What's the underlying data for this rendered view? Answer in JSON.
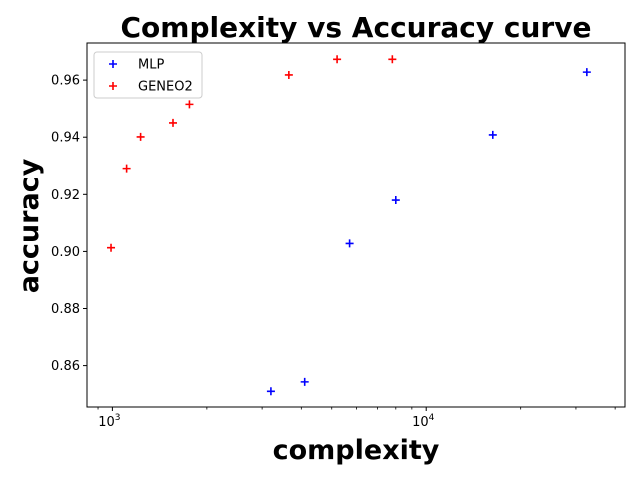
{
  "chart_data": {
    "type": "scatter",
    "title": "Complexity vs Accuracy curve",
    "xlabel": "complexity",
    "ylabel": "accuracy",
    "xscale": "log",
    "xlim": [
      830,
      43000
    ],
    "ylim": [
      0.8455,
      0.973
    ],
    "grid": false,
    "legend_position": "top-left",
    "x_ticks": [
      {
        "value": 1000,
        "base": "10",
        "exp": "3"
      },
      {
        "value": 10000,
        "base": "10",
        "exp": "4"
      }
    ],
    "y_ticks": [
      {
        "value": 0.86,
        "label": "0.86"
      },
      {
        "value": 0.88,
        "label": "0.88"
      },
      {
        "value": 0.9,
        "label": "0.90"
      },
      {
        "value": 0.92,
        "label": "0.92"
      },
      {
        "value": 0.94,
        "label": "0.94"
      },
      {
        "value": 0.96,
        "label": "0.96"
      }
    ],
    "series": [
      {
        "name": "MLP",
        "color": "#0000ff",
        "marker": "plus",
        "points": [
          {
            "x": 3200,
            "y": 0.851
          },
          {
            "x": 4100,
            "y": 0.8543
          },
          {
            "x": 5700,
            "y": 0.9028
          },
          {
            "x": 8000,
            "y": 0.918
          },
          {
            "x": 16300,
            "y": 0.9408
          },
          {
            "x": 32500,
            "y": 0.9628
          }
        ]
      },
      {
        "name": "GENEO2",
        "color": "#ff0000",
        "marker": "plus",
        "points": [
          {
            "x": 990,
            "y": 0.9013
          },
          {
            "x": 1110,
            "y": 0.929
          },
          {
            "x": 1230,
            "y": 0.9401
          },
          {
            "x": 1560,
            "y": 0.945
          },
          {
            "x": 1760,
            "y": 0.9515
          },
          {
            "x": 3650,
            "y": 0.9618
          },
          {
            "x": 5200,
            "y": 0.9673
          },
          {
            "x": 7800,
            "y": 0.9673
          }
        ]
      }
    ]
  }
}
